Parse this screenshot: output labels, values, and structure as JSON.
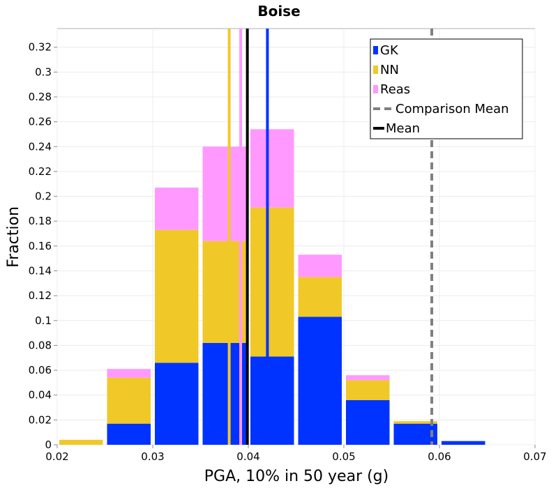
{
  "chart_data": {
    "type": "bar",
    "stacked": true,
    "title": "Boise",
    "xlabel": "PGA, 10% in 50 year (g)",
    "ylabel": "Fraction",
    "xlim": [
      0.02,
      0.07
    ],
    "ylim": [
      0,
      0.335
    ],
    "x_ticks": [
      "0.02",
      "0.03",
      "0.04",
      "0.05",
      "0.06",
      "0.07"
    ],
    "x_tick_values": [
      0.02,
      0.03,
      0.04,
      0.05,
      0.06,
      0.07
    ],
    "y_ticks": [
      "0",
      "0.02",
      "0.04",
      "0.06",
      "0.08",
      "0.1",
      "0.12",
      "0.14",
      "0.16",
      "0.18",
      "0.2",
      "0.22",
      "0.24",
      "0.26",
      "0.28",
      "0.3",
      "0.32"
    ],
    "y_tick_values": [
      0,
      0.02,
      0.04,
      0.06,
      0.08,
      0.1,
      0.12,
      0.14,
      0.16,
      0.18,
      0.2,
      0.22,
      0.24,
      0.26,
      0.28,
      0.3,
      0.32
    ],
    "bin_edges": [
      0.02,
      0.025,
      0.03,
      0.035,
      0.04,
      0.045,
      0.05,
      0.055,
      0.06,
      0.065,
      0.07
    ],
    "series": [
      {
        "name": "GK",
        "color": "#0033ff",
        "values": [
          0.0,
          0.017,
          0.066,
          0.082,
          0.071,
          0.103,
          0.036,
          0.017,
          0.003,
          0.0
        ]
      },
      {
        "name": "NN",
        "color": "#f0c828",
        "values": [
          0.004,
          0.037,
          0.107,
          0.082,
          0.12,
          0.032,
          0.016,
          0.002,
          0.0,
          0.0
        ]
      },
      {
        "name": "Reas",
        "color": "#ff99ff",
        "values": [
          0.0,
          0.007,
          0.034,
          0.076,
          0.063,
          0.018,
          0.004,
          0.0,
          0.0,
          0.0
        ]
      }
    ],
    "mean_lines": [
      {
        "series": "GK",
        "x": 0.042,
        "color": "#0033ff"
      },
      {
        "series": "NN",
        "x": 0.038,
        "color": "#f0c828"
      },
      {
        "series": "Reas",
        "x": 0.0392,
        "color": "#ff99ff"
      }
    ],
    "mean": {
      "x": 0.0399,
      "color": "#000000"
    },
    "comparison_mean": {
      "x": 0.0592,
      "color": "#808080"
    },
    "legend": {
      "placement": "top-right",
      "entries": [
        {
          "label": "GK",
          "color": "#0033ff",
          "kind": "box"
        },
        {
          "label": "NN",
          "color": "#f0c828",
          "kind": "box"
        },
        {
          "label": "Reas",
          "color": "#ff99ff",
          "kind": "box"
        },
        {
          "label": "Comparison Mean",
          "color": "#808080",
          "kind": "dashed"
        },
        {
          "label": "Mean",
          "color": "#000000",
          "kind": "solid"
        }
      ]
    },
    "grid": true
  }
}
